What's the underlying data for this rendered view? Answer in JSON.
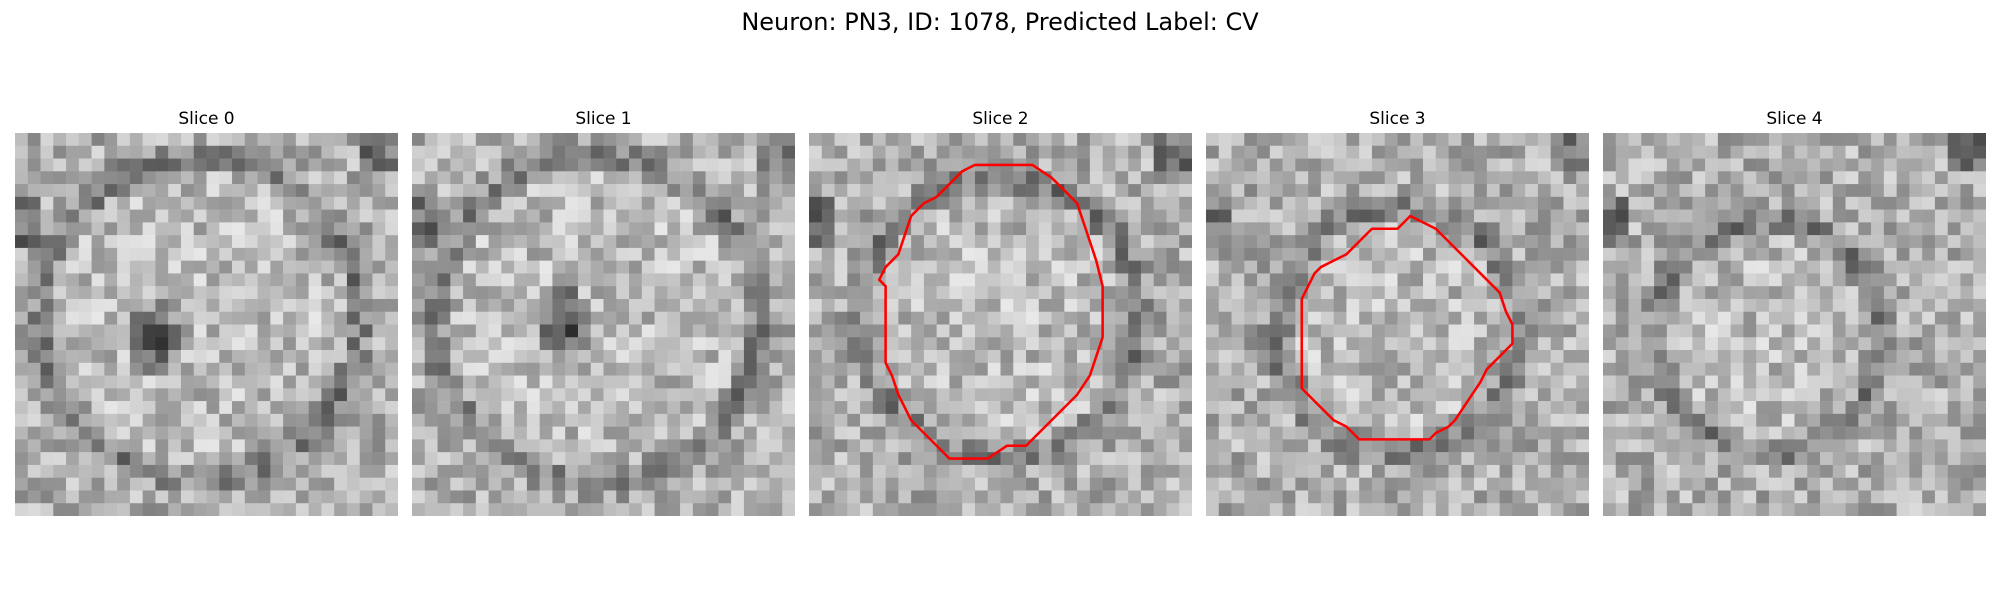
{
  "figure": {
    "title": "Neuron: PN3, ID: 1078, Predicted Label: CV",
    "contour_color": "#ff0000"
  },
  "panels": [
    {
      "title": "Slice 0",
      "has_contour": false,
      "dark_core": true
    },
    {
      "title": "Slice 1",
      "has_contour": false,
      "dark_core": true
    },
    {
      "title": "Slice 2",
      "has_contour": true,
      "dark_core": false
    },
    {
      "title": "Slice 3",
      "has_contour": true,
      "dark_core": false
    },
    {
      "title": "Slice 4",
      "has_contour": false,
      "dark_core": false
    }
  ]
}
